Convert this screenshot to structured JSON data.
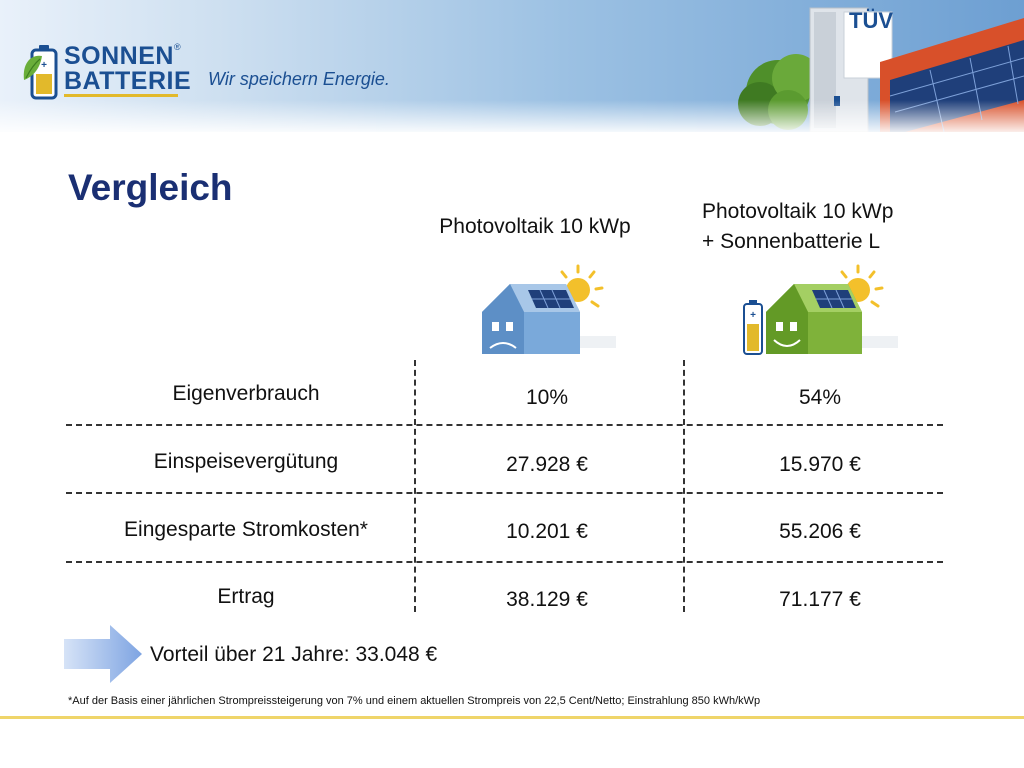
{
  "header": {
    "logo_line1": "SONNEN",
    "logo_line2": "BATTERIE",
    "logo_reg": "®",
    "slogan": "Wir speichern Energie.",
    "tuv_badge": "TÜV"
  },
  "slide": {
    "title": "Vergleich",
    "columns": [
      {
        "lines": [
          "Photovoltaik 10 kWp"
        ]
      },
      {
        "lines": [
          "Photovoltaik 10 kWp",
          "+ Sonnenbatterie L"
        ]
      }
    ],
    "rows": [
      {
        "label": "Eigenverbrauch",
        "pv": "10%",
        "pv_battery": "54%"
      },
      {
        "label": "Einspeisevergütung",
        "pv": "27.928 €",
        "pv_battery": "15.970 €"
      },
      {
        "label": "Eingesparte Stromkosten*",
        "pv": "10.201 €",
        "pv_battery": "55.206 €"
      },
      {
        "label": "Ertrag",
        "pv": "38.129 €",
        "pv_battery": "71.177 €"
      }
    ],
    "advantage": "Vorteil über 21 Jahre: 33.048 €",
    "footnote": "*Auf der Basis einer jährlichen Strompreissteigerung von 7% und einem aktuellen Strompreis von 22,5 Cent/Netto; Einstrahlung 850 kWh/kWp"
  },
  "colors": {
    "title": "#1a2f73",
    "brand_blue": "#1b4f92",
    "house_blue": "#7aa9da",
    "house_green": "#7fb23a",
    "sun": "#f3c02b",
    "roof_red": "#d8502a",
    "arrow_blue": "#8fb0e6"
  },
  "icons": [
    "battery-leaf-logo-icon",
    "sad-house-icon",
    "happy-house-battery-icon",
    "sun-icon",
    "arrow-right-icon"
  ]
}
